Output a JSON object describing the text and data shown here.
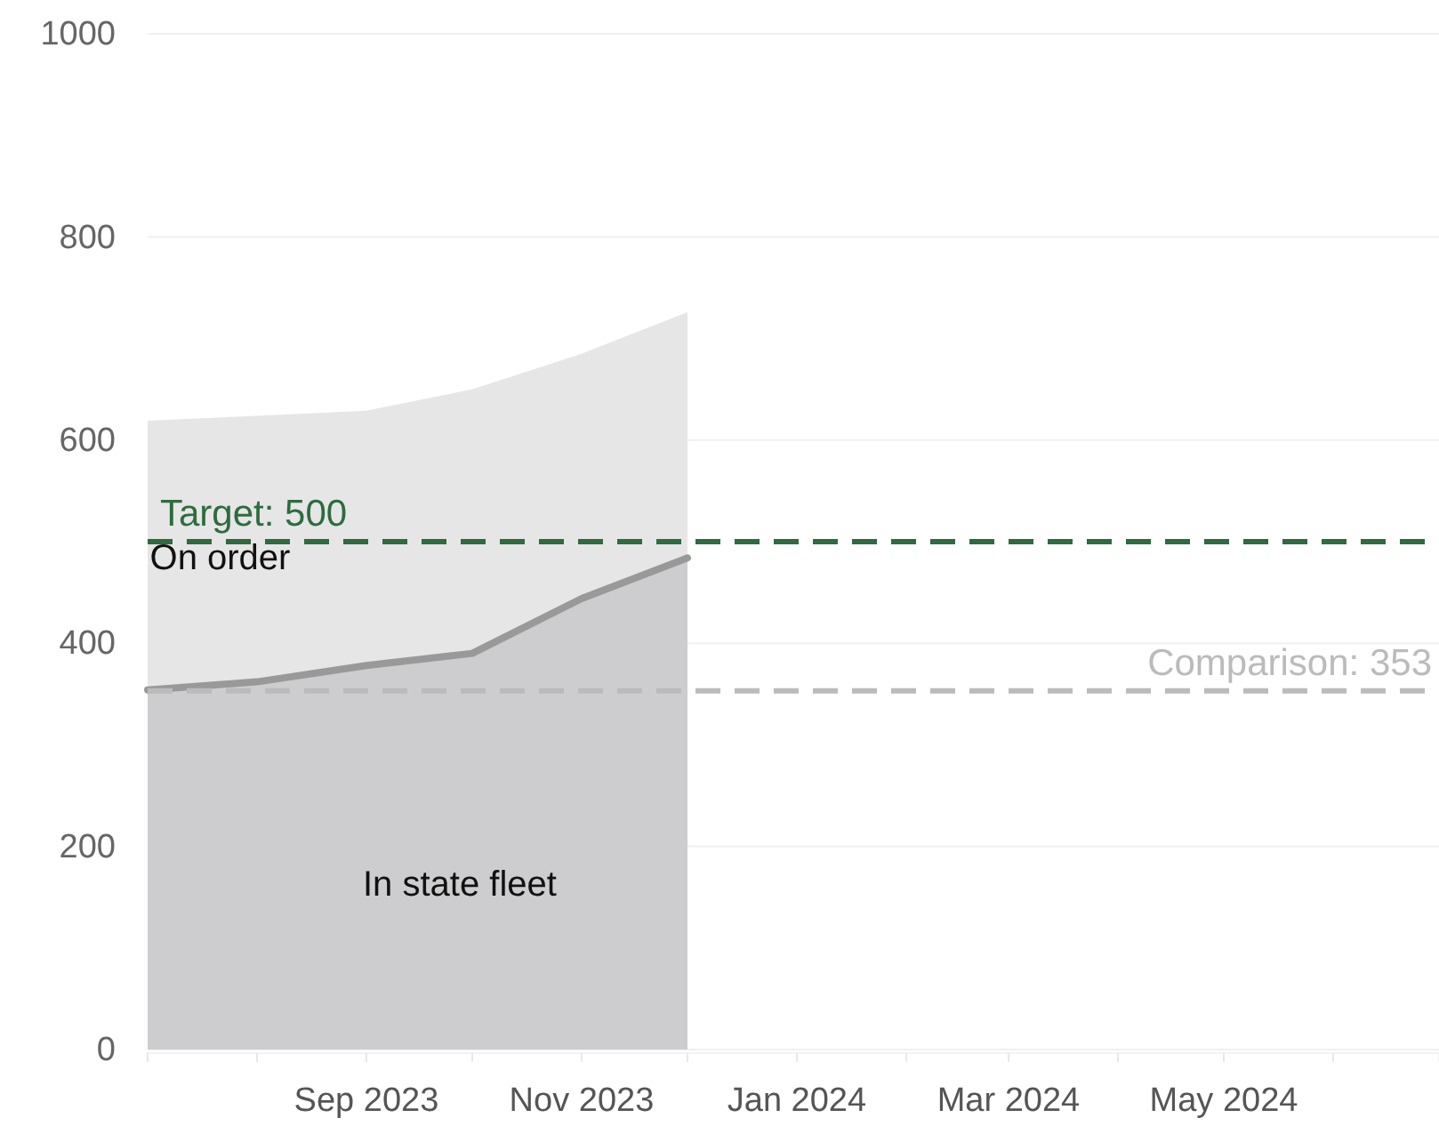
{
  "chart_data": {
    "type": "area",
    "stacked": true,
    "x": [
      "2023-07",
      "2023-08",
      "2023-09",
      "2023-10",
      "2023-11",
      "2023-12"
    ],
    "series": [
      {
        "name": "In state fleet",
        "color": "#cdcdd0",
        "values": [
          354,
          362,
          378,
          390,
          444,
          484
        ]
      },
      {
        "name": "On order",
        "color": "#e6e6e6",
        "values": [
          265,
          262,
          251,
          260,
          241,
          242
        ]
      }
    ],
    "xlim": [
      "2023-07",
      "2024-07"
    ],
    "xticks": [
      {
        "value": "2023-07",
        "label": null
      },
      {
        "value": "2023-08",
        "label": null
      },
      {
        "value": "2023-09",
        "label": "Sep 2023"
      },
      {
        "value": "2023-10",
        "label": null
      },
      {
        "value": "2023-11",
        "label": "Nov 2023"
      },
      {
        "value": "2023-12",
        "label": null
      },
      {
        "value": "2024-01",
        "label": "Jan 2024"
      },
      {
        "value": "2024-02",
        "label": null
      },
      {
        "value": "2024-03",
        "label": "Mar 2024"
      },
      {
        "value": "2024-04",
        "label": null
      },
      {
        "value": "2024-05",
        "label": "May 2024"
      },
      {
        "value": "2024-06",
        "label": null
      }
    ],
    "ylim": [
      0,
      1000
    ],
    "yticks": [
      0,
      200,
      400,
      600,
      800,
      1000
    ],
    "grid": "y",
    "legend": false,
    "ref_lines": [
      {
        "axis": "y",
        "value": 500,
        "label": "Target: 500",
        "color": "#2e6b3e",
        "line_style": "dashed"
      },
      {
        "axis": "y",
        "value": 353,
        "label": "Comparison: 353",
        "color": "#bbbbbb",
        "line_style": "dashed"
      }
    ]
  }
}
